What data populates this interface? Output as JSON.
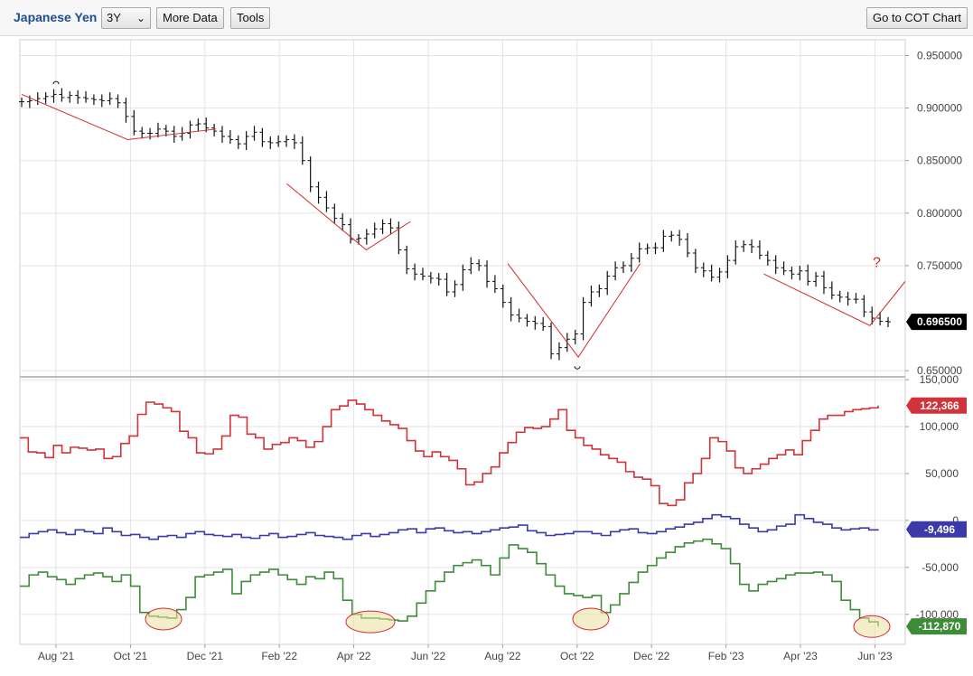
{
  "header": {
    "title": "Japanese Yen",
    "range_selected": "3Y",
    "more_data_label": "More Data",
    "tools_label": "Tools",
    "cot_button_label": "Go to COT Chart"
  },
  "chart_data": [
    {
      "type": "ohlc",
      "name": "price",
      "y_ticks": [
        "0.950000",
        "0.900000",
        "0.850000",
        "0.800000",
        "0.750000",
        "0.650000"
      ],
      "ylim": [
        0.645,
        0.965
      ],
      "last_value_label": "0.696500",
      "annotation": "?",
      "x_ticks": [
        "Aug '21",
        "Oct '21",
        "Dec '21",
        "Feb '22",
        "Apr '22",
        "Jun '22",
        "Aug '22",
        "Oct '22",
        "Dec '22",
        "Feb '23",
        "Apr '23",
        "Jun '23"
      ],
      "series": [
        {
          "values": [
            0.906,
            0.907,
            0.909,
            0.911,
            0.913,
            0.91,
            0.912,
            0.91,
            0.909,
            0.908,
            0.907,
            0.909,
            0.905,
            0.892,
            0.878,
            0.876,
            0.876,
            0.88,
            0.878,
            0.873,
            0.876,
            0.884,
            0.885,
            0.881,
            0.878,
            0.873,
            0.87,
            0.866,
            0.873,
            0.877,
            0.868,
            0.867,
            0.868,
            0.87,
            0.867,
            0.85,
            0.825,
            0.815,
            0.805,
            0.795,
            0.789,
            0.775,
            0.776,
            0.78,
            0.785,
            0.79,
            0.786,
            0.765,
            0.747,
            0.742,
            0.74,
            0.738,
            0.737,
            0.725,
            0.732,
            0.746,
            0.752,
            0.75,
            0.735,
            0.728,
            0.715,
            0.703,
            0.7,
            0.697,
            0.695,
            0.692,
            0.666,
            0.672,
            0.68,
            0.685,
            0.715,
            0.725,
            0.728,
            0.74,
            0.748,
            0.75,
            0.757,
            0.766,
            0.767,
            0.767,
            0.778,
            0.779,
            0.775,
            0.762,
            0.748,
            0.745,
            0.739,
            0.744,
            0.755,
            0.768,
            0.77,
            0.768,
            0.76,
            0.755,
            0.748,
            0.745,
            0.742,
            0.745,
            0.735,
            0.74,
            0.729,
            0.722,
            0.72,
            0.718,
            0.718,
            0.706,
            0.7,
            0.697,
            0.6965
          ]
        }
      ],
      "trendlines": [
        {
          "points": [
            [
              0.0,
              0.913
            ],
            [
              0.12,
              0.87
            ],
            [
              0.22,
              0.88
            ]
          ]
        },
        {
          "points": [
            [
              0.3,
              0.828
            ],
            [
              0.39,
              0.765
            ],
            [
              0.44,
              0.792
            ]
          ]
        },
        {
          "points": [
            [
              0.55,
              0.752
            ],
            [
              0.63,
              0.663
            ],
            [
              0.7,
              0.752
            ]
          ]
        },
        {
          "points": [
            [
              0.84,
              0.742
            ],
            [
              0.96,
              0.693
            ],
            [
              1.0,
              0.735
            ]
          ]
        }
      ]
    },
    {
      "type": "step_line",
      "name": "cot",
      "y_ticks": [
        "150,000",
        "100,000",
        "50,000",
        "0",
        "-50,000",
        "-100,000"
      ],
      "ylim": [
        -132000,
        152000
      ],
      "series": [
        {
          "color": "#d0333a",
          "last_label": "122,366",
          "values": [
            88000,
            73000,
            72000,
            67000,
            80000,
            72000,
            78000,
            77000,
            75000,
            76000,
            66000,
            68000,
            82000,
            90000,
            113000,
            126000,
            124000,
            120000,
            116000,
            95000,
            88000,
            72000,
            71000,
            76000,
            90000,
            112000,
            110000,
            92000,
            88000,
            76000,
            81000,
            83000,
            88000,
            85000,
            78000,
            84000,
            100000,
            118000,
            122000,
            128000,
            124000,
            118000,
            112000,
            106000,
            102000,
            98000,
            85000,
            74000,
            68000,
            73000,
            68000,
            64000,
            55000,
            38000,
            41000,
            50000,
            57000,
            72000,
            83000,
            94000,
            99000,
            98000,
            100000,
            108000,
            118000,
            96000,
            88000,
            80000,
            76000,
            70000,
            66000,
            62000,
            52000,
            46000,
            44000,
            37000,
            18000,
            16000,
            22000,
            40000,
            50000,
            66000,
            88000,
            84000,
            74000,
            56000,
            50000,
            55000,
            60000,
            66000,
            70000,
            75000,
            70000,
            85000,
            96000,
            108000,
            112000,
            112000,
            116000,
            118000,
            119000,
            120000,
            122366
          ]
        },
        {
          "color": "#3b3aa8",
          "last_label": "-9,496",
          "values": [
            -18000,
            -14000,
            -12000,
            -10000,
            -13000,
            -15000,
            -10000,
            -12000,
            -14000,
            -8000,
            -12000,
            -16000,
            -15000,
            -18000,
            -20000,
            -17000,
            -16000,
            -18000,
            -14000,
            -12000,
            -15000,
            -16000,
            -17000,
            -15000,
            -18000,
            -19000,
            -16000,
            -14000,
            -18000,
            -17000,
            -15000,
            -13000,
            -16000,
            -17000,
            -18000,
            -20000,
            -16000,
            -14000,
            -17000,
            -15000,
            -13000,
            -10000,
            -9000,
            -13000,
            -9000,
            -8000,
            -11000,
            -13000,
            -12000,
            -14000,
            -12000,
            -10000,
            -8000,
            -7000,
            -5000,
            -11000,
            -13000,
            -16000,
            -15000,
            -14000,
            -12000,
            -12000,
            -14000,
            -16000,
            -12000,
            -10000,
            -9000,
            -13000,
            -14000,
            -12000,
            -9000,
            -7000,
            -4000,
            -2000,
            2000,
            6000,
            4000,
            2000,
            -4000,
            -8000,
            -12000,
            -10000,
            -6000,
            -4000,
            6000,
            2000,
            -2000,
            -4000,
            -8000,
            -10000,
            -9000,
            -8000,
            -10000,
            -9496
          ]
        },
        {
          "color": "#3e8c3a",
          "last_label": "-112,870",
          "values": [
            -70000,
            -58000,
            -55000,
            -60000,
            -63000,
            -68000,
            -62000,
            -58000,
            -56000,
            -60000,
            -65000,
            -58000,
            -70000,
            -98000,
            -102000,
            -103000,
            -104000,
            -95000,
            -82000,
            -60000,
            -58000,
            -55000,
            -52000,
            -78000,
            -65000,
            -58000,
            -55000,
            -52000,
            -58000,
            -63000,
            -68000,
            -60000,
            -62000,
            -55000,
            -62000,
            -85000,
            -100000,
            -104000,
            -104000,
            -105000,
            -106000,
            -107000,
            -102000,
            -88000,
            -75000,
            -65000,
            -55000,
            -48000,
            -45000,
            -42000,
            -48000,
            -58000,
            -40000,
            -26000,
            -30000,
            -34000,
            -46000,
            -58000,
            -70000,
            -78000,
            -80000,
            -82000,
            -80000,
            -98000,
            -90000,
            -78000,
            -66000,
            -55000,
            -48000,
            -40000,
            -34000,
            -28000,
            -24000,
            -22000,
            -20000,
            -25000,
            -30000,
            -46000,
            -68000,
            -75000,
            -68000,
            -65000,
            -62000,
            -58000,
            -56000,
            -56000,
            -55000,
            -58000,
            -65000,
            -85000,
            -95000,
            -104000,
            -108000,
            -112870
          ]
        }
      ]
    }
  ]
}
